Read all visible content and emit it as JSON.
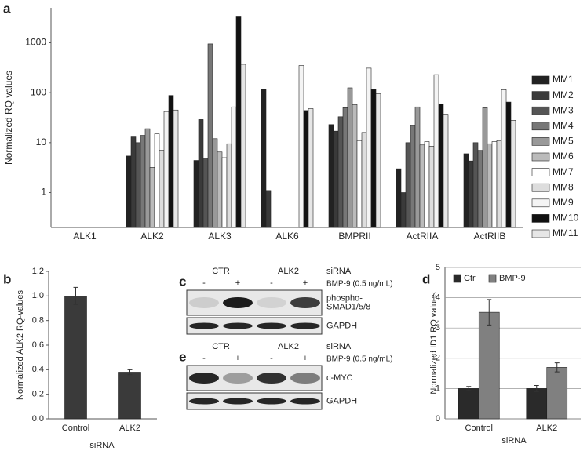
{
  "chart_data": [
    {
      "type": "bar",
      "panel": "a",
      "ylabel": "Normalized RQ values",
      "log_scale": true,
      "ylim": [
        0.2,
        5000
      ],
      "yticks": [
        1,
        10,
        100,
        1000
      ],
      "categories": [
        "ALK1",
        "ALK2",
        "ALK3",
        "ALK6",
        "BMPRII",
        "ActRIIA",
        "ActRIIB"
      ],
      "legend": "right",
      "series": [
        {
          "name": "MM1",
          "color": "#222222",
          "values": [
            null,
            5.4,
            4.4,
            115,
            23,
            3,
            6
          ]
        },
        {
          "name": "MM2",
          "color": "#3a3a3a",
          "values": [
            null,
            13,
            29,
            1.1,
            17,
            1,
            4.3
          ]
        },
        {
          "name": "MM3",
          "color": "#555555",
          "values": [
            null,
            10,
            4.9,
            null,
            33,
            10,
            10
          ]
        },
        {
          "name": "MM4",
          "color": "#777777",
          "values": [
            null,
            14,
            950,
            null,
            50,
            22,
            7
          ]
        },
        {
          "name": "MM5",
          "color": "#999999",
          "values": [
            null,
            19,
            12,
            null,
            125,
            52,
            50
          ]
        },
        {
          "name": "MM6",
          "color": "#bbbbbb",
          "values": [
            null,
            3.2,
            6.5,
            null,
            58,
            9,
            9.5
          ]
        },
        {
          "name": "MM7",
          "color": "#ffffff",
          "values": [
            null,
            15,
            5,
            null,
            11,
            10.5,
            10.5
          ]
        },
        {
          "name": "MM8",
          "color": "#dddddd",
          "values": [
            null,
            7,
            9.5,
            null,
            16,
            8.5,
            11
          ]
        },
        {
          "name": "MM9",
          "color": "#f4f4f4",
          "values": [
            null,
            42,
            52,
            350,
            310,
            230,
            115
          ]
        },
        {
          "name": "MM10",
          "color": "#111111",
          "values": [
            null,
            88,
            3300,
            44,
            115,
            60,
            65
          ]
        },
        {
          "name": "MM11",
          "color": "#e6e6e6",
          "values": [
            null,
            45,
            370,
            48,
            95,
            37,
            28
          ]
        }
      ]
    },
    {
      "type": "bar",
      "panel": "b",
      "ylabel": "Normalized ALK2 RQ-values",
      "xlabel": "siRNA",
      "ylim": [
        0,
        1.2
      ],
      "yticks": [
        {
          "value": 0,
          "label": "0.0"
        },
        {
          "value": 0.2,
          "label": "0.2"
        },
        {
          "value": 0.4,
          "label": "0.4"
        },
        {
          "value": 0.6,
          "label": "0.6"
        },
        {
          "value": 0.8,
          "label": "0.8"
        },
        {
          "value": 1,
          "label": "1.0"
        },
        {
          "value": 1.2,
          "label": "1.2"
        }
      ],
      "categories": [
        "Control",
        "ALK2"
      ],
      "values": [
        1,
        0.38
      ],
      "errors": [
        0.07,
        0.02
      ],
      "color": "#3a3a3a"
    },
    {
      "type": "bar",
      "panel": "d",
      "ylabel": "Normalized ID1 RQ values",
      "xlabel": "siRNA",
      "ylim": [
        0,
        5
      ],
      "yticks": [
        0,
        1,
        2,
        3,
        4,
        5
      ],
      "grid": true,
      "legend": "top",
      "categories": [
        "Control",
        "ALK2"
      ],
      "series": [
        {
          "name": "Ctr",
          "color": "#2a2a2a",
          "values": [
            1,
            1
          ],
          "errors": [
            0.07,
            0.1
          ]
        },
        {
          "name": "BMP-9",
          "color": "#808080",
          "values": [
            3.52,
            1.7
          ],
          "errors": [
            0.42,
            0.15
          ]
        }
      ]
    }
  ],
  "blots": [
    {
      "panel": "c",
      "groups": [
        "CTR",
        "ALK2"
      ],
      "group_label": "siRNA",
      "lanes": [
        "-",
        "+",
        "-",
        "+"
      ],
      "treatment": "BMP-9 (0.5 ng/mL)",
      "rows": [
        [
          "phospho-",
          "SMAD1/5/8"
        ],
        [
          "GAPDH"
        ]
      ]
    },
    {
      "panel": "e",
      "groups": [
        "CTR",
        "ALK2"
      ],
      "group_label": "siRNA",
      "lanes": [
        "-",
        "+",
        "-",
        "+"
      ],
      "treatment": "BMP-9 (0.5 ng/mL)",
      "rows": [
        [
          "c-MYC"
        ],
        [
          "GAPDH"
        ]
      ]
    }
  ]
}
